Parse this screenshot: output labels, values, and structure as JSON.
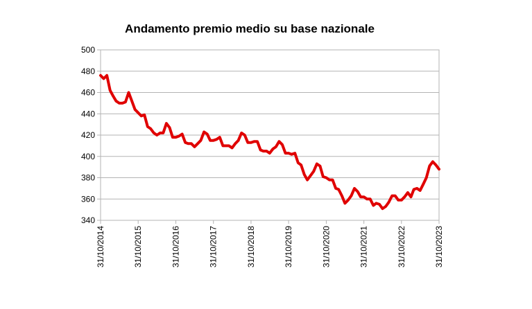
{
  "chart_data": {
    "type": "line",
    "title": "Andamento premio medio su base nazionale",
    "xlabel": "",
    "ylabel": "",
    "ylim": [
      340,
      500
    ],
    "yticks": [
      340,
      360,
      380,
      400,
      420,
      440,
      460,
      480,
      500
    ],
    "xticks": [
      "31/10/2014",
      "31/10/2015",
      "31/10/2016",
      "31/10/2017",
      "31/10/2018",
      "31/10/2019",
      "31/10/2020",
      "31/10/2021",
      "31/10/2022",
      "31/10/2023"
    ],
    "xlim": [
      "31/10/2014",
      "31/10/2023"
    ],
    "grid": true,
    "line_color": "#e00000",
    "series": [
      {
        "name": "",
        "points": [
          [
            "31/10/2014",
            476
          ],
          [
            "30/11/2014",
            473
          ],
          [
            "31/12/2014",
            476
          ],
          [
            "31/01/2015",
            462
          ],
          [
            "28/02/2015",
            457
          ],
          [
            "31/03/2015",
            452
          ],
          [
            "30/04/2015",
            450
          ],
          [
            "31/05/2015",
            450
          ],
          [
            "30/06/2015",
            451
          ],
          [
            "31/07/2015",
            460
          ],
          [
            "31/08/2015",
            452
          ],
          [
            "30/09/2015",
            444
          ],
          [
            "31/10/2015",
            441
          ],
          [
            "30/11/2015",
            438
          ],
          [
            "31/12/2015",
            439
          ],
          [
            "31/01/2016",
            428
          ],
          [
            "29/02/2016",
            426
          ],
          [
            "31/03/2016",
            422
          ],
          [
            "30/04/2016",
            420
          ],
          [
            "31/05/2016",
            422
          ],
          [
            "30/06/2016",
            422
          ],
          [
            "31/07/2016",
            431
          ],
          [
            "31/08/2016",
            427
          ],
          [
            "30/09/2016",
            418
          ],
          [
            "31/10/2016",
            418
          ],
          [
            "30/11/2016",
            419
          ],
          [
            "31/12/2016",
            421
          ],
          [
            "31/01/2017",
            413
          ],
          [
            "28/02/2017",
            412
          ],
          [
            "31/03/2017",
            412
          ],
          [
            "30/04/2017",
            409
          ],
          [
            "31/05/2017",
            412
          ],
          [
            "30/06/2017",
            415
          ],
          [
            "31/07/2017",
            423
          ],
          [
            "31/08/2017",
            421
          ],
          [
            "30/09/2017",
            415
          ],
          [
            "31/10/2017",
            415
          ],
          [
            "30/11/2017",
            416
          ],
          [
            "31/12/2017",
            418
          ],
          [
            "31/01/2018",
            410
          ],
          [
            "28/02/2018",
            410
          ],
          [
            "31/03/2018",
            410
          ],
          [
            "30/04/2018",
            408
          ],
          [
            "31/05/2018",
            412
          ],
          [
            "30/06/2018",
            415
          ],
          [
            "31/07/2018",
            422
          ],
          [
            "31/08/2018",
            420
          ],
          [
            "30/09/2018",
            413
          ],
          [
            "31/10/2018",
            413
          ],
          [
            "30/11/2018",
            414
          ],
          [
            "31/12/2018",
            414
          ],
          [
            "31/01/2019",
            406
          ],
          [
            "28/02/2019",
            405
          ],
          [
            "31/03/2019",
            405
          ],
          [
            "30/04/2019",
            403
          ],
          [
            "31/05/2019",
            407
          ],
          [
            "30/06/2019",
            409
          ],
          [
            "31/07/2019",
            414
          ],
          [
            "31/08/2019",
            411
          ],
          [
            "30/09/2019",
            403
          ],
          [
            "31/10/2019",
            403
          ],
          [
            "30/11/2019",
            402
          ],
          [
            "31/12/2019",
            403
          ],
          [
            "31/01/2020",
            394
          ],
          [
            "29/02/2020",
            392
          ],
          [
            "31/03/2020",
            383
          ],
          [
            "30/04/2020",
            378
          ],
          [
            "31/05/2020",
            382
          ],
          [
            "30/06/2020",
            386
          ],
          [
            "31/07/2020",
            393
          ],
          [
            "31/08/2020",
            391
          ],
          [
            "30/09/2020",
            381
          ],
          [
            "31/10/2020",
            380
          ],
          [
            "30/11/2020",
            378
          ],
          [
            "31/12/2020",
            378
          ],
          [
            "31/01/2021",
            370
          ],
          [
            "28/02/2021",
            369
          ],
          [
            "31/03/2021",
            363
          ],
          [
            "30/04/2021",
            356
          ],
          [
            "31/05/2021",
            359
          ],
          [
            "30/06/2021",
            363
          ],
          [
            "31/07/2021",
            370
          ],
          [
            "31/08/2021",
            367
          ],
          [
            "30/09/2021",
            362
          ],
          [
            "31/10/2021",
            362
          ],
          [
            "30/11/2021",
            360
          ],
          [
            "31/12/2021",
            360
          ],
          [
            "31/01/2022",
            354
          ],
          [
            "28/02/2022",
            356
          ],
          [
            "31/03/2022",
            355
          ],
          [
            "30/04/2022",
            351
          ],
          [
            "31/05/2022",
            353
          ],
          [
            "30/06/2022",
            357
          ],
          [
            "31/07/2022",
            363
          ],
          [
            "31/08/2022",
            363
          ],
          [
            "30/09/2022",
            359
          ],
          [
            "31/10/2022",
            359
          ],
          [
            "30/11/2022",
            362
          ],
          [
            "31/12/2022",
            366
          ],
          [
            "31/01/2023",
            362
          ],
          [
            "28/02/2023",
            369
          ],
          [
            "31/03/2023",
            370
          ],
          [
            "30/04/2023",
            368
          ],
          [
            "31/05/2023",
            374
          ],
          [
            "30/06/2023",
            380
          ],
          [
            "31/07/2023",
            391
          ],
          [
            "31/08/2023",
            395
          ],
          [
            "30/09/2023",
            392
          ],
          [
            "31/10/2023",
            388
          ]
        ]
      }
    ]
  }
}
